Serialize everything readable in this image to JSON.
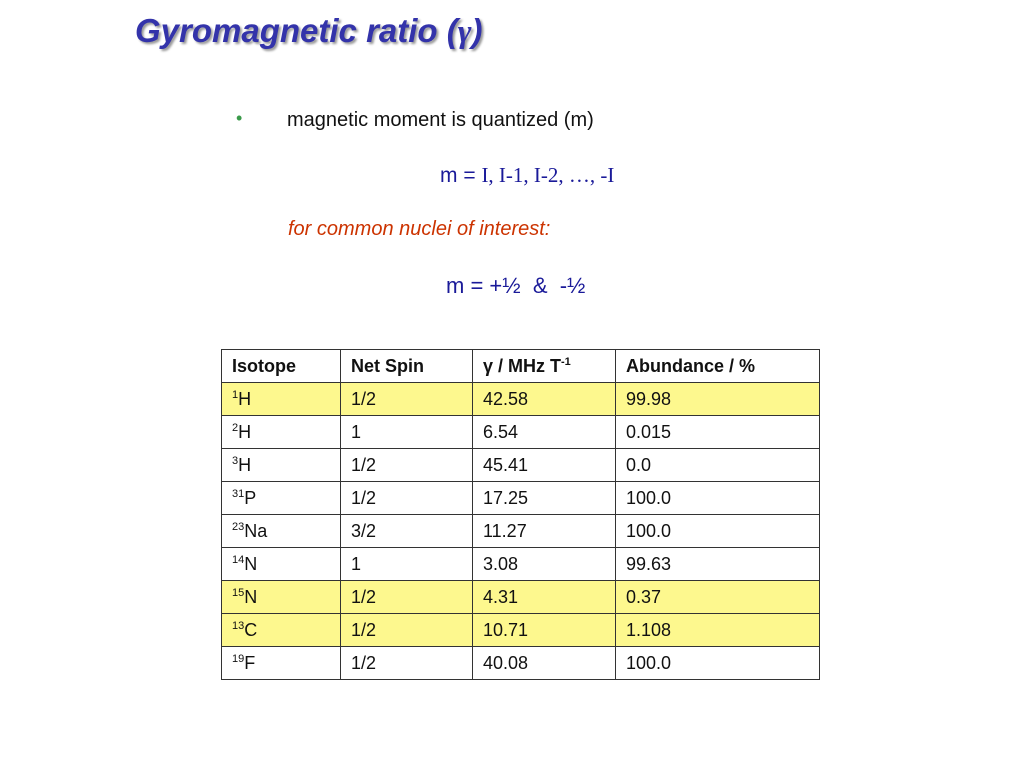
{
  "title": {
    "text": "Gyromagnetic ratio (",
    "symbol": "γ",
    "close": ")"
  },
  "bullet": {
    "text": "magnetic moment is quantized (m)",
    "color": "#3a9a4a"
  },
  "equation1": {
    "lhs": "m = ",
    "rhs": "I, I-1, I-2, …, -I"
  },
  "note": "for common nuclei of interest:",
  "equation2": "m = +½  &  -½",
  "table": {
    "headers": {
      "isotope": "Isotope",
      "spin": "Net Spin",
      "gamma": "γ / MHz T",
      "gamma_exp": "-1",
      "abundance": "Abundance / %"
    },
    "highlight_color": "#fdf88e",
    "rows": [
      {
        "mass": "1",
        "symbol": "H",
        "spin": "1/2",
        "gamma": "42.58",
        "abundance": "99.98",
        "highlighted": true
      },
      {
        "mass": "2",
        "symbol": "H",
        "spin": "1",
        "gamma": "6.54",
        "abundance": "0.015",
        "highlighted": false
      },
      {
        "mass": "3",
        "symbol": "H",
        "spin": "1/2",
        "gamma": "45.41",
        "abundance": "0.0",
        "highlighted": false
      },
      {
        "mass": "31",
        "symbol": "P",
        "spin": "1/2",
        "gamma": "17.25",
        "abundance": "100.0",
        "highlighted": false
      },
      {
        "mass": "23",
        "symbol": "Na",
        "spin": "3/2",
        "gamma": "11.27",
        "abundance": "100.0",
        "highlighted": false
      },
      {
        "mass": "14",
        "symbol": "N",
        "spin": "1",
        "gamma": "3.08",
        "abundance": "99.63",
        "highlighted": false
      },
      {
        "mass": "15",
        "symbol": "N",
        "spin": "1/2",
        "gamma": "4.31",
        "abundance": "0.37",
        "highlighted": true
      },
      {
        "mass": "13",
        "symbol": "C",
        "spin": "1/2",
        "gamma": "10.71",
        "abundance": "1.108",
        "highlighted": true
      },
      {
        "mass": "19",
        "symbol": "F",
        "spin": "1/2",
        "gamma": "40.08",
        "abundance": "100.0",
        "highlighted": false
      }
    ]
  }
}
